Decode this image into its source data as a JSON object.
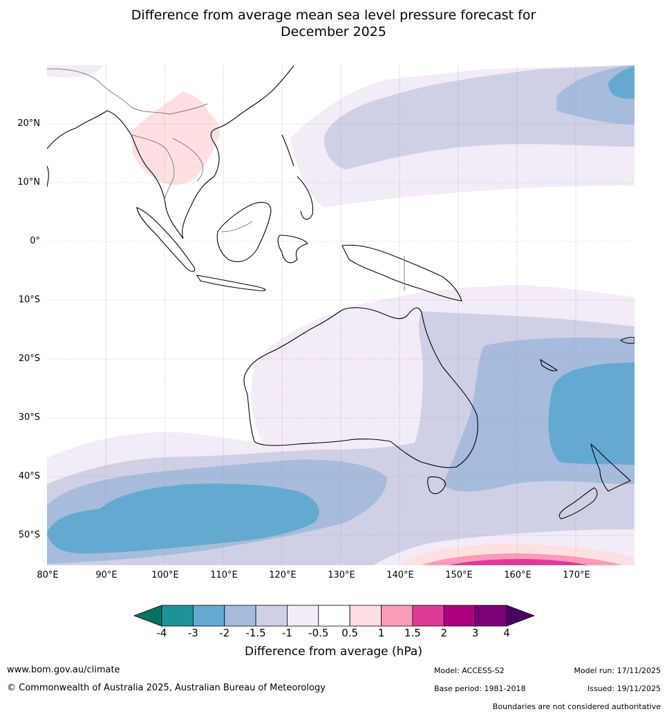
{
  "title": {
    "line1": "Difference from average mean sea level pressure forecast for",
    "line2": "December 2025"
  },
  "map": {
    "lat_labels": [
      "20°N",
      "10°N",
      "0°",
      "10°S",
      "20°S",
      "30°S",
      "40°S",
      "50°S"
    ],
    "lon_labels": [
      "80°E",
      "90°E",
      "100°E",
      "110°E",
      "120°E",
      "130°E",
      "140°E",
      "150°E",
      "160°E",
      "170°E"
    ],
    "extent": {
      "lon_min": 80,
      "lon_max": 180,
      "lat_min": -55,
      "lat_max": 30
    }
  },
  "colorbar": {
    "title": "Difference from average (hPa)",
    "ticks": [
      "-4",
      "-3",
      "-2",
      "-1.5",
      "-1",
      "-0.5",
      "0.5",
      "1",
      "1.5",
      "2",
      "3",
      "4"
    ],
    "colors": [
      "#087260",
      "#1f9298",
      "#64a9d0",
      "#a7bbdc",
      "#cfd0e6",
      "#f3ebf5",
      "#ffffff",
      "#fde0df",
      "#f99cb8",
      "#de3a98",
      "#ae017e",
      "#7a0177",
      "#4a0060"
    ]
  },
  "footer": {
    "website": "www.bom.gov.au/climate",
    "copyright": "© Commonwealth of Australia 2025, Australian Bureau of Meteorology",
    "model": "Model: ACCESS-S2",
    "base_period": "Base period: 1981-2018",
    "model_run": "Model run: 17/11/2025",
    "issued": "Issued: 19/11/2025",
    "disclaimer": "Boundaries are not considered authoritative"
  }
}
